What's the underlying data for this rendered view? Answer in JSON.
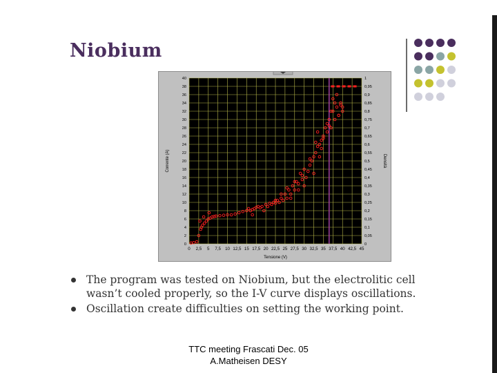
{
  "slide": {
    "title": "Niobium",
    "bullets": [
      "The program was tested on Niobium, but the electrolitic cell wasn’t cooled properly, so the I-V curve displays oscillations.",
      "Oscillation create difficulties on setting the working point."
    ],
    "footer_line1": "TTC meeting Frascati Dec. 05",
    "footer_line2": "A.Matheisen DESY"
  },
  "theme": {
    "title_color": "#4a2e5e",
    "dot_colors": [
      "#4a2e5e",
      "#8aa5a5",
      "#c4c22f",
      "#d0d0dc"
    ],
    "plot_bg": "#000000",
    "grid_color": "#b8b84a",
    "data_color": "#ff2020",
    "cursor_color": "#a040a0",
    "panel_color": "#c0c0c0"
  },
  "chart_data": {
    "type": "scatter",
    "title": "",
    "xlabel": "Tensione (V)",
    "ylabel": "Corrente (A)",
    "y2label": "Densità",
    "xlim": [
      0,
      45
    ],
    "ylim": [
      0,
      40
    ],
    "y2lim": [
      0,
      1
    ],
    "grid": true,
    "x_ticks": [
      "0",
      "2,5",
      "5",
      "7,5",
      "10",
      "12,5",
      "15",
      "17,5",
      "20",
      "22,5",
      "25",
      "27,5",
      "30",
      "32,5",
      "35",
      "37,5",
      "40",
      "42,5",
      "45"
    ],
    "y_ticks": [
      "0",
      "2",
      "4",
      "6",
      "8",
      "10",
      "12",
      "14",
      "16",
      "18",
      "20",
      "22",
      "24",
      "26",
      "28",
      "30",
      "32",
      "34",
      "36",
      "38",
      "40"
    ],
    "y2_ticks": [
      "0",
      "0,05",
      "0,1",
      "0,15",
      "0,2",
      "0,25",
      "0,3",
      "0,35",
      "0,4",
      "0,45",
      "0,5",
      "0,55",
      "0,6",
      "0,65",
      "0,7",
      "0,75",
      "0,8",
      "0,85",
      "0,9",
      "0,95",
      "1"
    ],
    "cursor_x": 36.5,
    "series": [
      {
        "x": [
          0.5,
          1.2,
          2.0,
          2.5,
          3.0,
          3.2,
          3.5,
          4.0,
          4.5,
          5.0,
          5.5,
          6.0,
          6.5,
          7.0,
          8.0,
          9.0,
          10.0,
          11.0,
          12.0,
          13.0,
          14.0,
          15.0,
          15.5,
          16.0,
          16.5,
          17.0,
          17.5,
          18.0,
          18.5,
          19.0,
          20.0,
          20.5,
          21.0,
          21.5,
          22.0,
          22.5,
          23.0,
          23.5,
          24.0,
          24.5,
          25.0,
          25.5,
          26.0,
          26.5,
          27.0,
          27.5,
          28.0,
          28.5,
          29.0,
          29.5,
          30.0,
          30.5,
          31.0,
          31.5,
          32.0,
          32.5,
          33.0,
          33.5,
          34.0,
          34.5,
          35.0,
          35.5,
          36.0,
          36.5,
          37.0,
          37.5,
          38.0,
          38.5,
          39.0,
          39.5,
          40.0,
          2.8,
          3.8,
          5.2,
          16.5,
          19.5,
          22.5,
          24.0,
          25.5,
          26.5,
          27.5,
          28.5,
          29.5,
          30.0,
          31.5,
          32.5,
          33.0,
          34.0,
          35.0,
          36.0,
          37.0,
          38.0,
          39.0,
          40.0,
          33.5,
          34.5,
          36.5,
          37.5,
          38.5,
          39.5
        ],
        "y": [
          0.2,
          0.3,
          0.5,
          2.0,
          3.5,
          4.0,
          4.5,
          5.0,
          5.5,
          6.0,
          6.2,
          6.5,
          6.6,
          6.7,
          6.8,
          6.9,
          7.0,
          7.0,
          7.2,
          7.5,
          7.8,
          8.0,
          8.5,
          8.0,
          8.3,
          8.5,
          8.8,
          9.0,
          8.7,
          9.0,
          9.5,
          9.0,
          9.8,
          9.5,
          10.0,
          9.8,
          10.5,
          10.0,
          11.0,
          10.5,
          12.0,
          11.0,
          13.0,
          12.0,
          14.0,
          13.0,
          15.0,
          14.5,
          17.0,
          15.5,
          18.0,
          16.0,
          17.5,
          19.0,
          20.0,
          21.0,
          22.0,
          23.5,
          24.0,
          25.0,
          25.5,
          28.0,
          27.0,
          30.0,
          28.0,
          32.0,
          30.0,
          33.0,
          31.0,
          34.0,
          32.0,
          5.5,
          6.5,
          7.5,
          7.0,
          8.0,
          10.5,
          12.0,
          13.5,
          11.0,
          15.0,
          13.0,
          16.5,
          14.0,
          20.5,
          17.0,
          24.5,
          21.0,
          26.0,
          29.0,
          32.0,
          34.0,
          31.0,
          33.0,
          27.0,
          23.0,
          28.5,
          35.0,
          36.0,
          33.5
        ]
      }
    ],
    "saturation_line": {
      "x": [
        37.0,
        44.0
      ],
      "y": [
        38.0,
        38.0
      ]
    }
  }
}
